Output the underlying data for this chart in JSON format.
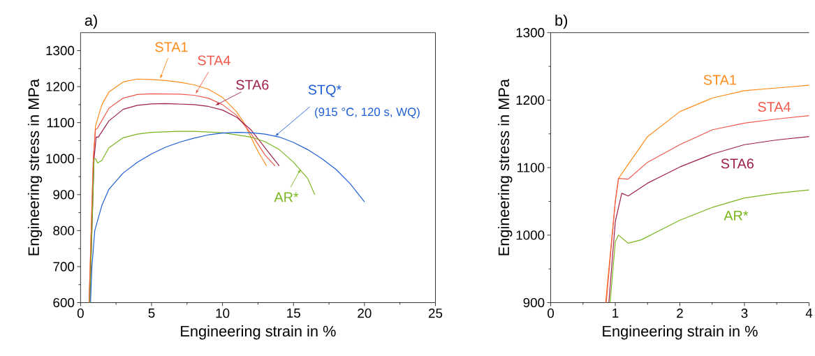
{
  "chart_data": [
    {
      "type": "line",
      "title": "a)",
      "xlabel": "Engineering strain in %",
      "ylabel": "Engineering stress in MPa",
      "xlim": [
        0,
        25
      ],
      "ylim": [
        600,
        1350
      ],
      "xticks": [
        0,
        5,
        10,
        15,
        20,
        25
      ],
      "yticks": [
        600,
        700,
        800,
        900,
        1000,
        1100,
        1200,
        1300
      ],
      "series": [
        {
          "color": "#ff8c1a",
          "x": [
            0.6,
            0.9,
            1.05,
            1.5,
            2,
            3,
            4,
            5,
            6,
            7,
            8,
            9,
            10,
            11,
            11.5,
            12,
            12.5,
            13.1
          ],
          "values": [
            600,
            1000,
            1090,
            1150,
            1185,
            1213,
            1221,
            1220,
            1217,
            1212,
            1205,
            1193,
            1170,
            1130,
            1100,
            1060,
            1020,
            980
          ]
        },
        {
          "color": "#f0584c",
          "x": [
            0.6,
            0.9,
            1.05,
            1.2,
            2,
            3,
            4,
            5,
            7,
            8,
            9,
            10,
            11,
            12,
            13,
            13.7
          ],
          "values": [
            600,
            1000,
            1080,
            1085,
            1140,
            1168,
            1178,
            1180,
            1179,
            1176,
            1168,
            1150,
            1120,
            1070,
            1010,
            980
          ]
        },
        {
          "color": "#9e1f4e",
          "x": [
            0.65,
            0.95,
            1.1,
            1.25,
            2,
            3,
            4,
            5,
            6,
            8,
            9,
            10,
            11,
            12,
            13,
            14
          ],
          "values": [
            600,
            1000,
            1060,
            1060,
            1105,
            1137,
            1148,
            1152,
            1153,
            1150,
            1145,
            1135,
            1115,
            1080,
            1030,
            980
          ]
        },
        {
          "color": "#7ab51d",
          "x": [
            0.65,
            0.95,
            1.05,
            1.2,
            1.5,
            2,
            3,
            4,
            5,
            7,
            8,
            10,
            12,
            13,
            14,
            15,
            16,
            16.5
          ],
          "values": [
            600,
            1000,
            1000,
            988,
            995,
            1030,
            1058,
            1068,
            1073,
            1076,
            1076,
            1072,
            1060,
            1047,
            1025,
            990,
            945,
            900
          ]
        },
        {
          "color": "#1e5fd8",
          "x": [
            0.7,
            0.8,
            1,
            1.5,
            2,
            3,
            4,
            5,
            6,
            7,
            8,
            9,
            10,
            11,
            12,
            13,
            14,
            15,
            16,
            17,
            18,
            19,
            20
          ],
          "values": [
            600,
            700,
            800,
            870,
            915,
            960,
            990,
            1013,
            1032,
            1046,
            1057,
            1066,
            1071,
            1073,
            1072,
            1068,
            1060,
            1045,
            1025,
            1000,
            970,
            930,
            880
          ]
        }
      ],
      "annotations": [
        {
          "text": "STA1",
          "x": 5.6,
          "y": 1222
        },
        {
          "text": "STA4",
          "x": 8.1,
          "y": 1180
        },
        {
          "text": "STA6",
          "x": 9.5,
          "y": 1148
        },
        {
          "text": "AR*",
          "x": 15.5,
          "y": 971
        },
        {
          "text": "STQ*",
          "x": 13.7,
          "y": 1062
        },
        "(915 °C, 120 s, WQ)"
      ]
    },
    {
      "type": "line",
      "title": "b)",
      "xlabel": "Engineering strain in %",
      "ylabel": "Engineering stress in MPa",
      "xlim": [
        0,
        4
      ],
      "ylim": [
        900,
        1300
      ],
      "xticks": [
        0,
        1,
        2,
        3,
        4
      ],
      "yticks": [
        900,
        1000,
        1100,
        1200,
        1300
      ],
      "series": [
        {
          "color": "#ff8c1a",
          "x": [
            0.85,
            1.0,
            1.05,
            1.2,
            1.5,
            2,
            2.5,
            3,
            3.5,
            4
          ],
          "values": [
            900,
            1050,
            1084,
            1105,
            1146,
            1183,
            1203,
            1214,
            1218,
            1222
          ]
        },
        {
          "color": "#f0584c",
          "x": [
            0.86,
            1.0,
            1.05,
            1.2,
            1.5,
            2,
            2.5,
            3,
            3.5,
            4
          ],
          "values": [
            900,
            1050,
            1084,
            1083,
            1108,
            1134,
            1156,
            1166,
            1172,
            1177
          ]
        },
        {
          "color": "#9e1f4e",
          "x": [
            0.9,
            1.0,
            1.1,
            1.2,
            1.5,
            2,
            2.5,
            3,
            3.5,
            4
          ],
          "values": [
            900,
            1020,
            1062,
            1058,
            1077,
            1101,
            1120,
            1134,
            1141,
            1146
          ]
        },
        {
          "color": "#7ab51d",
          "x": [
            0.92,
            1.0,
            1.05,
            1.2,
            1.4,
            1.75,
            2,
            2.5,
            3,
            3.5,
            4
          ],
          "values": [
            900,
            990,
            1000,
            988,
            993,
            1010,
            1022,
            1041,
            1055,
            1062,
            1067
          ]
        }
      ],
      "annotations": [
        "STA1",
        "STA4",
        "STA6",
        "AR*"
      ]
    }
  ]
}
